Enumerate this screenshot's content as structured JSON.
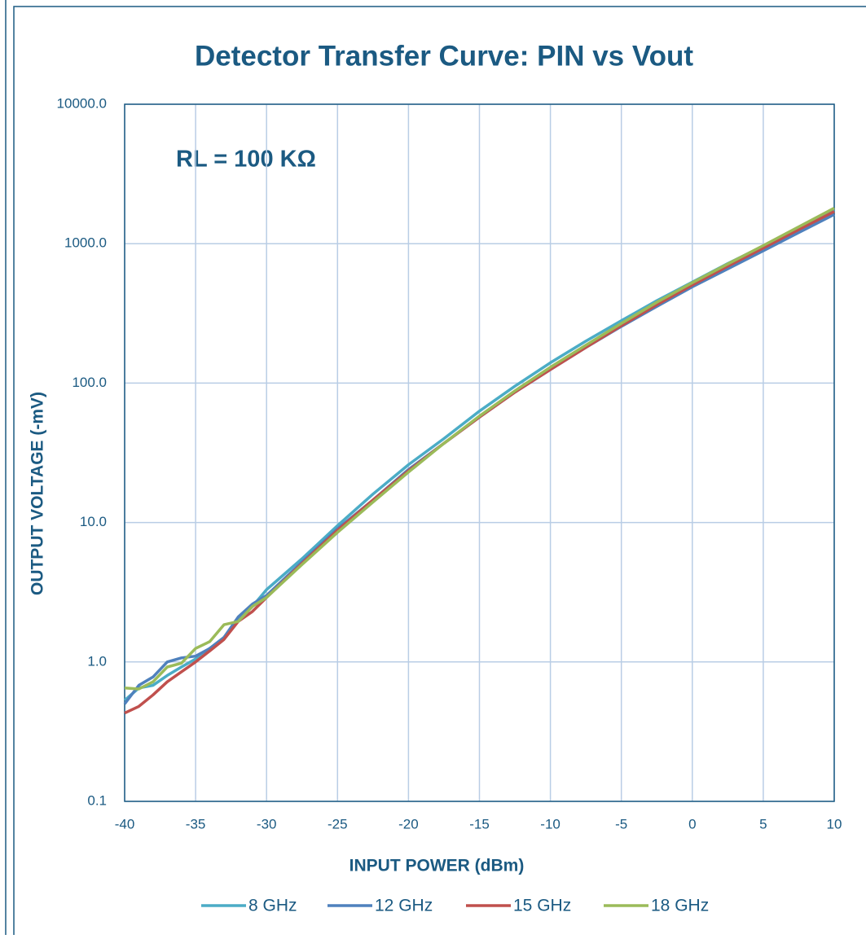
{
  "chart_data": {
    "type": "line",
    "title": "Detector Transfer Curve: PIN vs Vout",
    "annotation": "RL = 100 KΩ",
    "x_label": "INPUT POWER (dBm)",
    "y_label": "OUTPUT VOLTAGE (-mV)",
    "log_y": true,
    "grid": true,
    "legend": "bottom",
    "xlim": [
      -40,
      10
    ],
    "xticks": [
      -40,
      -35,
      -30,
      -25,
      -20,
      -15,
      -10,
      -5,
      0,
      5,
      10
    ],
    "ylim": [
      0.1,
      10000
    ],
    "yticks": [
      {
        "value": 0.1,
        "label": "0.1"
      },
      {
        "value": 1,
        "label": "1.0"
      },
      {
        "value": 10,
        "label": "10.0"
      },
      {
        "value": 100,
        "label": "100.0"
      },
      {
        "value": 1000,
        "label": "1000.0"
      },
      {
        "value": 10000,
        "label": "10000.0"
      }
    ],
    "x": [
      -40,
      -39,
      -38,
      -37,
      -36,
      -35,
      -34,
      -33,
      -32,
      -31,
      -30,
      -27.5,
      -25,
      -22.5,
      -20,
      -17.5,
      -15,
      -12.5,
      -10,
      -7.5,
      -5,
      -2.5,
      0,
      2.5,
      5,
      7.5,
      10
    ],
    "series": [
      {
        "name": "8 GHz",
        "color": "#4bacc6",
        "values": [
          0.53,
          0.65,
          0.68,
          0.8,
          0.92,
          1.05,
          1.25,
          1.5,
          2.0,
          2.5,
          3.3,
          5.5,
          9.5,
          16,
          26,
          40,
          63,
          95,
          140,
          200,
          280,
          390,
          530,
          720,
          960,
          1300,
          1750
        ]
      },
      {
        "name": "12 GHz",
        "color": "#4f81bd",
        "values": [
          0.5,
          0.68,
          0.78,
          1.0,
          1.07,
          1.1,
          1.25,
          1.5,
          2.1,
          2.6,
          3.0,
          5.2,
          9,
          14.5,
          24,
          37,
          57,
          86,
          125,
          180,
          255,
          355,
          490,
          660,
          890,
          1200,
          1620
        ]
      },
      {
        "name": "15 GHz",
        "color": "#c0504d",
        "values": [
          0.43,
          0.48,
          0.58,
          0.72,
          0.85,
          1.0,
          1.2,
          1.45,
          1.95,
          2.3,
          2.9,
          5.1,
          8.8,
          14.5,
          23.5,
          37,
          57,
          86,
          125,
          180,
          258,
          365,
          505,
          690,
          930,
          1260,
          1700
        ]
      },
      {
        "name": "18 GHz",
        "color": "#9bbb59",
        "values": [
          0.65,
          0.64,
          0.72,
          0.92,
          0.98,
          1.25,
          1.4,
          1.85,
          1.95,
          2.5,
          2.9,
          5.0,
          8.5,
          14,
          23,
          37,
          58,
          88,
          130,
          187,
          268,
          380,
          525,
          715,
          970,
          1320,
          1800
        ]
      }
    ]
  }
}
